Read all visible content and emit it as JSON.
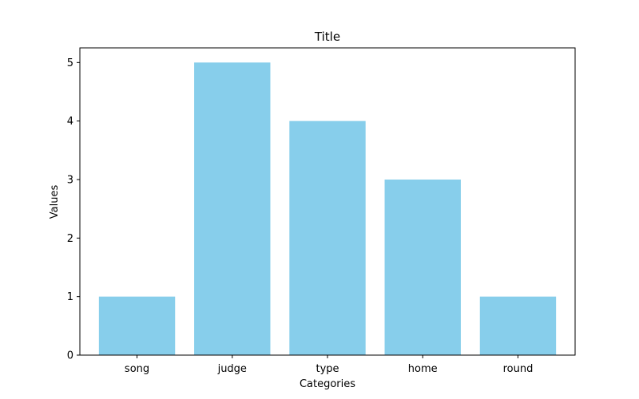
{
  "chart_data": {
    "type": "bar",
    "title": "Title",
    "xlabel": "Categories",
    "ylabel": "Values",
    "categories": [
      "song",
      "judge",
      "type",
      "home",
      "round"
    ],
    "values": [
      1,
      5,
      4,
      3,
      1
    ],
    "ylim": [
      0,
      5.25
    ],
    "yticks": [
      0,
      1,
      2,
      3,
      4,
      5
    ],
    "bar_color": "#87CEEB",
    "grid": false,
    "legend": "none"
  }
}
